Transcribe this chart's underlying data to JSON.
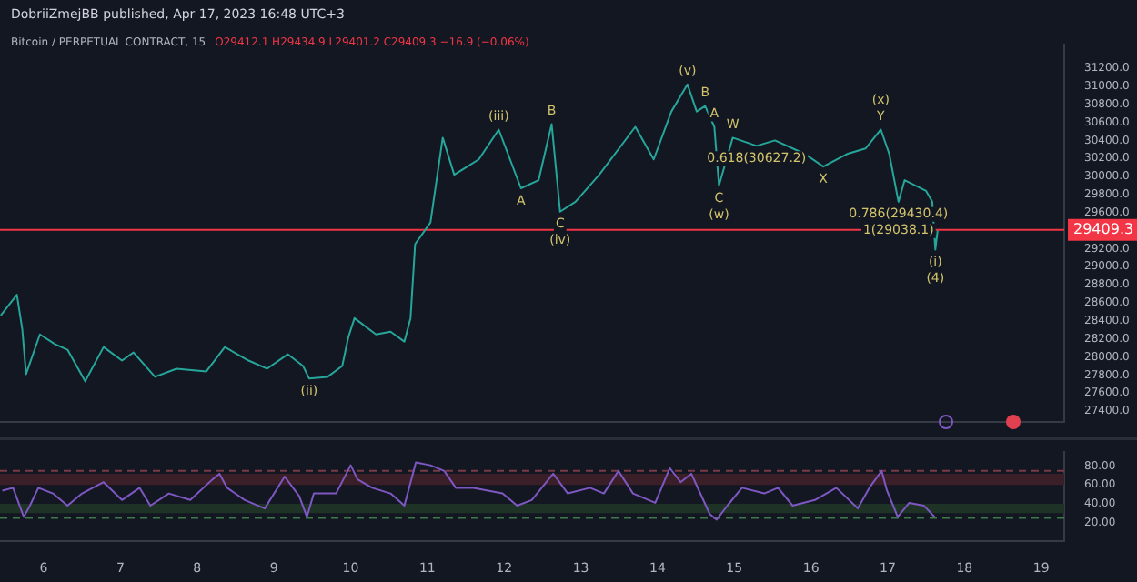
{
  "chart_data": [
    {
      "type": "line",
      "title": "Bitcoin / PERPETUAL CONTRACT, 15",
      "subtitle": "O29412.1 H29434.9 L29401.2 C29409.3 −16.9 (−0.06%)",
      "color": "#26a69a",
      "x": [
        5.44,
        5.65,
        5.72,
        5.77,
        5.95,
        6.15,
        6.31,
        6.54,
        6.78,
        7.02,
        7.17,
        7.45,
        7.73,
        8.12,
        8.36,
        8.67,
        8.91,
        9.18,
        9.38,
        9.46,
        9.7,
        9.89,
        9.97,
        10.05,
        10.33,
        10.52,
        10.7,
        10.78,
        10.84,
        11.04,
        11.2,
        11.35,
        11.67,
        11.93,
        12.22,
        12.45,
        12.62,
        12.73,
        12.93,
        13.24,
        13.71,
        13.95,
        14.18,
        14.39,
        14.51,
        14.62,
        14.74,
        14.8,
        14.98,
        15.29,
        15.53,
        15.92,
        16.16,
        16.47,
        16.71,
        16.91,
        17.02,
        17.14,
        17.22,
        17.5,
        17.58,
        17.62,
        17.65
      ],
      "values": [
        28460,
        28690,
        28310,
        27810,
        28250,
        28140,
        28080,
        27730,
        28110,
        27960,
        28050,
        27780,
        27870,
        27840,
        28110,
        27960,
        27870,
        28030,
        27900,
        27760,
        27780,
        27900,
        28220,
        28430,
        28250,
        28280,
        28170,
        28430,
        29250,
        29490,
        30430,
        30020,
        30190,
        30520,
        29870,
        29960,
        30580,
        29610,
        29720,
        30020,
        30550,
        30190,
        30720,
        31020,
        30720,
        30780,
        30550,
        29900,
        30430,
        30340,
        30400,
        30250,
        30110,
        30250,
        30310,
        30520,
        30250,
        29720,
        29960,
        29840,
        29720,
        29190,
        29400
      ],
      "xlim": [
        5.43,
        19.3
      ],
      "ylim": [
        27280,
        31460
      ],
      "yticks": [
        {
          "value": 27400,
          "label": "27400.0"
        },
        {
          "value": 27600,
          "label": "27600.0"
        },
        {
          "value": 27800,
          "label": "27800.0"
        },
        {
          "value": 28000,
          "label": "28000.0"
        },
        {
          "value": 28200,
          "label": "28200.0"
        },
        {
          "value": 28400,
          "label": "28400.0"
        },
        {
          "value": 28600,
          "label": "28600.0"
        },
        {
          "value": 28800,
          "label": "28800.0"
        },
        {
          "value": 29000,
          "label": "29000.0"
        },
        {
          "value": 29200,
          "label": "29200.0"
        },
        {
          "value": 29600,
          "label": "29600.0"
        },
        {
          "value": 29800,
          "label": "29800.0"
        },
        {
          "value": 30000,
          "label": "30000.0"
        },
        {
          "value": 30200,
          "label": "30200.0"
        },
        {
          "value": 30400,
          "label": "30400.0"
        },
        {
          "value": 30600,
          "label": "30600.0"
        },
        {
          "value": 30800,
          "label": "30800.0"
        },
        {
          "value": 31000,
          "label": "31000.0"
        },
        {
          "value": 31200,
          "label": "31200.0"
        }
      ],
      "tick_labels": "y",
      "ref_lines": [
        {
          "axis": "y",
          "value": 29409.3,
          "label": "29409.3",
          "color": "#f23645"
        }
      ],
      "annotations": [
        "DobriiZmejBB published, Apr 17, 2023 16:48 UTC+3",
        {
          "text": "(ii)",
          "x": 9.46,
          "y": 27760
        },
        {
          "text": "(iii)",
          "x": 11.93,
          "y": 30520
        },
        {
          "text": "A",
          "x": 12.22,
          "y": 29870
        },
        {
          "text": "B",
          "x": 12.62,
          "y": 30580
        },
        {
          "text": "C",
          "x": 12.73,
          "y": 29610
        },
        {
          "text": "(iv)",
          "x": 12.73,
          "y": 29610
        },
        {
          "text": "(v)",
          "x": 14.39,
          "y": 31020
        },
        {
          "text": "B",
          "x": 14.62,
          "y": 30780
        },
        {
          "text": "A",
          "x": 14.74,
          "y": 30550
        },
        {
          "text": "C",
          "x": 14.8,
          "y": 29900
        },
        {
          "text": "(w)",
          "x": 14.8,
          "y": 29900
        },
        {
          "text": "W",
          "x": 14.98,
          "y": 30430
        },
        {
          "text": "0.618(30627.2)",
          "x": 15.29,
          "y": 30340
        },
        {
          "text": "X",
          "x": 16.16,
          "y": 30110
        },
        {
          "text": "Y",
          "x": 16.91,
          "y": 30520
        },
        {
          "text": "(x)",
          "x": 16.91,
          "y": 30520
        },
        {
          "text": "0.786(29430.4)",
          "x": 17.14,
          "y": 29720
        },
        {
          "text": "1(29038.1)",
          "x": 17.14,
          "y": 29720
        },
        {
          "text": "(i)",
          "x": 17.62,
          "y": 29190
        },
        {
          "text": "(4)",
          "x": 17.62,
          "y": 29190
        }
      ]
    },
    {
      "type": "line",
      "color": "#7e57c2",
      "x": [
        5.46,
        5.6,
        5.74,
        5.82,
        5.93,
        6.12,
        6.31,
        6.5,
        6.78,
        7.02,
        7.25,
        7.39,
        7.63,
        7.91,
        8.2,
        8.29,
        8.39,
        8.62,
        8.88,
        9.14,
        9.33,
        9.43,
        9.52,
        9.81,
        10.0,
        10.09,
        10.28,
        10.52,
        10.7,
        10.85,
        11.04,
        11.22,
        11.37,
        11.6,
        11.98,
        12.17,
        12.36,
        12.64,
        12.83,
        13.12,
        13.3,
        13.49,
        13.68,
        13.97,
        14.16,
        14.3,
        14.44,
        14.68,
        14.77,
        14.91,
        15.1,
        15.39,
        15.57,
        15.76,
        16.05,
        16.33,
        16.61,
        16.76,
        16.92,
        16.99,
        17.13,
        17.28,
        17.47,
        17.61
      ],
      "values": [
        54,
        57,
        26,
        38,
        57,
        51,
        38,
        51,
        63,
        44,
        57,
        38,
        51,
        44,
        66,
        72,
        57,
        44,
        35,
        69,
        48,
        26,
        51,
        51,
        81,
        66,
        57,
        51,
        38,
        84,
        81,
        75,
        57,
        57,
        51,
        38,
        44,
        72,
        51,
        57,
        51,
        75,
        51,
        41,
        78,
        63,
        72,
        29,
        23,
        38,
        57,
        51,
        57,
        38,
        44,
        57,
        35,
        57,
        75,
        54,
        26,
        41,
        38,
        26
      ],
      "xlim": [
        5.43,
        19.3
      ],
      "ylim": [
        0,
        95
      ],
      "xticks": [
        6,
        7,
        8,
        9,
        10,
        11,
        12,
        13,
        14,
        15,
        16,
        17,
        18,
        19
      ],
      "yticks": [
        {
          "value": 20,
          "label": "20.00"
        },
        {
          "value": 40,
          "label": "40.00"
        },
        {
          "value": 60,
          "label": "60.00"
        },
        {
          "value": 80,
          "label": "80.00"
        }
      ],
      "bands": [
        {
          "axis": "y",
          "from": 60,
          "to": 72,
          "color": "#3a1f29"
        },
        {
          "axis": "y",
          "from": 30,
          "to": 40,
          "color": "#1e3326"
        }
      ],
      "ref_lines": [
        {
          "axis": "y",
          "value": 75,
          "color": "#7a3a46",
          "line_style": "dashed"
        },
        {
          "axis": "y",
          "value": 25,
          "color": "#3f7a4a",
          "line_style": "dashed"
        }
      ]
    }
  ]
}
